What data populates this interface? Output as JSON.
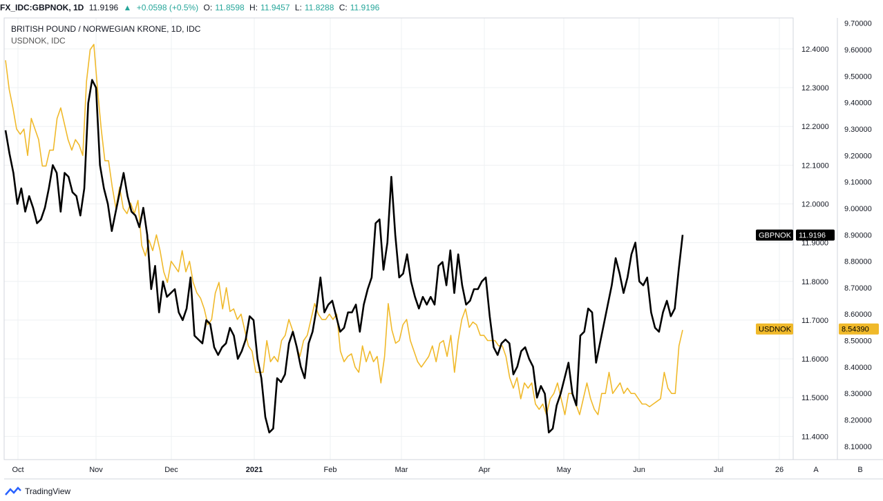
{
  "header": {
    "symbol": "FX_IDC:GBPNOK, 1D",
    "last": "11.9196",
    "change": "+0.0598 (+0.5%)",
    "o_label": "O:",
    "o_value": "11.8598",
    "h_label": "H:",
    "h_value": "11.9457",
    "l_label": "L:",
    "l_value": "11.8288",
    "c_label": "C:",
    "c_value": "11.9196"
  },
  "footer": {
    "brand": "TradingView"
  },
  "colors": {
    "gbp": "#000000",
    "usd": "#f0b92a",
    "grid": "#eef0f3",
    "axis": "#9598a1"
  },
  "chart_data": {
    "type": "line",
    "title": "BRITISH POUND / NORWEGIAN KRONE, 1D, IDC",
    "subtitle": "USDNOK, IDC",
    "x_labels": [
      "Oct",
      "Nov",
      "Dec",
      "2021",
      "Feb",
      "Mar",
      "Apr",
      "May",
      "Jun",
      "Jul",
      "26"
    ],
    "left_axis": {
      "label": "GBPNOK",
      "ylim": [
        11.34,
        12.48
      ],
      "ticks": [
        "12.4000",
        "12.3000",
        "12.2000",
        "12.1000",
        "12.0000",
        "11.9000",
        "11.8000",
        "11.7000",
        "11.6000",
        "11.5000",
        "11.4000"
      ]
    },
    "right_axis": {
      "label": "USDNOK",
      "ylim": [
        8.05,
        9.72
      ],
      "ticks": [
        "9.70000",
        "9.60000",
        "9.50000",
        "9.40000",
        "9.30000",
        "9.20000",
        "9.10000",
        "9.00000",
        "8.90000",
        "8.80000",
        "8.70000",
        "8.60000",
        "8.50000",
        "8.40000",
        "8.30000",
        "8.20000",
        "8.10000"
      ]
    },
    "pane_labels": [
      "A",
      "B"
    ],
    "last_labels": {
      "gbp_name": "GBPNOK",
      "gbp_value": "11.9196",
      "usd_name": "USDNOK",
      "usd_value": "8.54390"
    },
    "series": [
      {
        "name": "GBPNOK",
        "axis": "left",
        "values": [
          12.19,
          12.13,
          12.08,
          12.0,
          12.04,
          11.98,
          12.02,
          11.99,
          11.95,
          11.96,
          11.99,
          12.04,
          12.1,
          12.08,
          11.98,
          12.08,
          12.07,
          12.03,
          12.02,
          11.97,
          12.04,
          12.26,
          12.32,
          12.3,
          12.1,
          12.04,
          12.0,
          11.93,
          11.98,
          12.03,
          12.08,
          12.02,
          11.98,
          11.97,
          11.94,
          11.99,
          11.92,
          11.78,
          11.84,
          11.72,
          11.8,
          11.76,
          11.77,
          11.78,
          11.72,
          11.7,
          11.73,
          11.81,
          11.66,
          11.65,
          11.64,
          11.7,
          11.69,
          11.63,
          11.61,
          11.63,
          11.64,
          11.68,
          11.66,
          11.6,
          11.62,
          11.65,
          11.71,
          11.7,
          11.6,
          11.55,
          11.45,
          11.41,
          11.42,
          11.55,
          11.54,
          11.56,
          11.64,
          11.67,
          11.63,
          11.58,
          11.55,
          11.64,
          11.67,
          11.73,
          11.81,
          11.72,
          11.74,
          11.75,
          11.71,
          11.67,
          11.68,
          11.72,
          11.72,
          11.74,
          11.67,
          11.74,
          11.78,
          11.81,
          11.95,
          11.96,
          11.83,
          11.9,
          12.07,
          11.92,
          11.81,
          11.82,
          11.87,
          11.8,
          11.76,
          11.73,
          11.76,
          11.74,
          11.76,
          11.74,
          11.84,
          11.85,
          11.79,
          11.88,
          11.77,
          11.87,
          11.79,
          11.74,
          11.75,
          11.78,
          11.78,
          11.8,
          11.81,
          11.71,
          11.63,
          11.61,
          11.64,
          11.65,
          11.64,
          11.56,
          11.58,
          11.62,
          11.63,
          11.6,
          11.58,
          11.5,
          11.53,
          11.51,
          11.41,
          11.42,
          11.48,
          11.51,
          11.55,
          11.59,
          11.51,
          11.48,
          11.66,
          11.67,
          11.73,
          11.72,
          11.59,
          11.64,
          11.69,
          11.74,
          11.79,
          11.86,
          11.82,
          11.77,
          11.81,
          11.87,
          11.9,
          11.8,
          11.79,
          11.81,
          11.72,
          11.68,
          11.67,
          11.72,
          11.75,
          11.71,
          11.73,
          11.83,
          11.92
        ]
      },
      {
        "name": "USDNOK",
        "axis": "right",
        "values": [
          9.56,
          9.45,
          9.38,
          9.3,
          9.28,
          9.3,
          9.2,
          9.34,
          9.3,
          9.26,
          9.16,
          9.16,
          9.22,
          9.22,
          9.34,
          9.38,
          9.32,
          9.26,
          9.22,
          9.26,
          9.24,
          9.2,
          9.48,
          9.6,
          9.62,
          9.45,
          9.3,
          9.18,
          9.18,
          9.08,
          9.0,
          9.08,
          9.0,
          8.98,
          9.02,
          8.98,
          9.03,
          8.86,
          8.82,
          8.88,
          8.84,
          8.9,
          8.84,
          8.76,
          8.72,
          8.8,
          8.78,
          8.76,
          8.84,
          8.76,
          8.8,
          8.72,
          8.68,
          8.66,
          8.62,
          8.56,
          8.58,
          8.68,
          8.72,
          8.62,
          8.7,
          8.61,
          8.62,
          8.58,
          8.6,
          8.54,
          8.48,
          8.46,
          8.38,
          8.38,
          8.38,
          8.5,
          8.42,
          8.44,
          8.42,
          8.5,
          8.52,
          8.58,
          8.54,
          8.48,
          8.44,
          8.5,
          8.52,
          8.58,
          8.64,
          8.6,
          8.58,
          8.58,
          8.6,
          8.58,
          8.6,
          8.46,
          8.42,
          8.44,
          8.45,
          8.4,
          8.38,
          8.48,
          8.42,
          8.46,
          8.42,
          8.44,
          8.34,
          8.44,
          8.64,
          8.54,
          8.49,
          8.5,
          8.56,
          8.58,
          8.5,
          8.46,
          8.42,
          8.4,
          8.42,
          8.44,
          8.48,
          8.42,
          8.49,
          8.5,
          8.44,
          8.52,
          8.38,
          8.5,
          8.58,
          8.62,
          8.55,
          8.57,
          8.56,
          8.52,
          8.52,
          8.5,
          8.5,
          8.5,
          8.48,
          8.48,
          8.44,
          8.36,
          8.32,
          8.36,
          8.28,
          8.34,
          8.32,
          8.34,
          8.26,
          8.24,
          8.26,
          8.22,
          8.28,
          8.3,
          8.34,
          8.28,
          8.22,
          8.3,
          8.3,
          8.26,
          8.22,
          8.28,
          8.34,
          8.28,
          8.24,
          8.22,
          8.3,
          8.3,
          8.38,
          8.3,
          8.32,
          8.34,
          8.3,
          8.32,
          8.3,
          8.3,
          8.28,
          8.26,
          8.26,
          8.25,
          8.26,
          8.27,
          8.28,
          8.38,
          8.32,
          8.3,
          8.3,
          8.48,
          8.54
        ]
      }
    ]
  }
}
